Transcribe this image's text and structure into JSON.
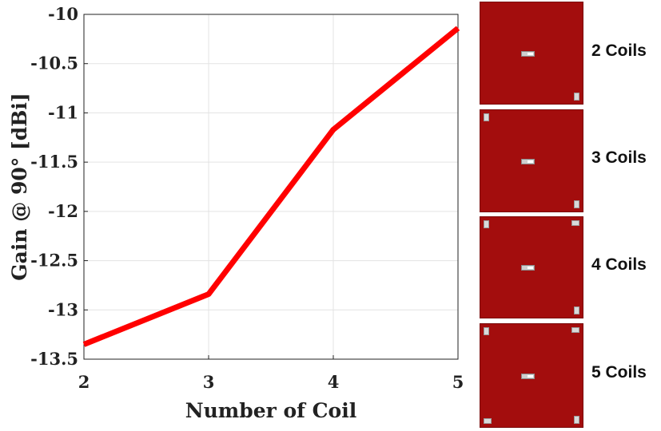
{
  "chart_data": {
    "type": "line",
    "title": "",
    "xlabel": "Number of Coil",
    "ylabel": "Gain @ 90° [dBi]",
    "x": [
      2,
      3,
      4,
      5
    ],
    "series": [
      {
        "name": "Gain",
        "color": "#ff0000",
        "values": [
          -13.35,
          -12.84,
          -11.17,
          -10.14
        ]
      }
    ],
    "xlim": [
      2,
      5
    ],
    "ylim": [
      -13.5,
      -10
    ],
    "xticks": [
      2,
      3,
      4,
      5
    ],
    "xtick_labels": [
      "2",
      "3",
      "4",
      "5"
    ],
    "yticks": [
      -13.5,
      -13,
      -12.5,
      -12,
      -11.5,
      -11,
      -10.5,
      -10
    ],
    "ytick_labels": [
      "-13.5",
      "-13",
      "-12.5",
      "-12",
      "-11.5",
      "-11",
      "-10.5",
      "-10"
    ],
    "grid": true
  },
  "panels": [
    {
      "label": "2 Coils",
      "corner_pads": [
        "bottom-right"
      ]
    },
    {
      "label": "3 Coils",
      "corner_pads": [
        "top-left",
        "bottom-right"
      ]
    },
    {
      "label": "4 Coils",
      "corner_pads": [
        "top-left",
        "top-right",
        "bottom-right"
      ]
    },
    {
      "label": "5 Coils",
      "corner_pads": [
        "top-left",
        "top-right",
        "bottom-left",
        "bottom-right"
      ]
    }
  ],
  "colors": {
    "board": "#a30d0d",
    "line": "#ff0000"
  }
}
